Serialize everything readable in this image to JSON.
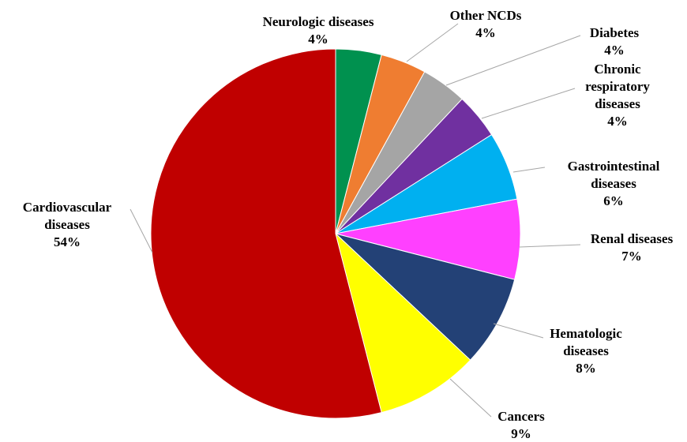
{
  "chart_data": {
    "type": "pie",
    "categories": [
      "Neurologic diseases",
      "Other NCDs",
      "Diabetes",
      "Chronic respiratory diseases",
      "Gastrointestinal diseases",
      "Renal diseases",
      "Hematologic diseases",
      "Cancers",
      "Cardiovascular diseases"
    ],
    "values": [
      4,
      4,
      4,
      4,
      6,
      7,
      8,
      9,
      54
    ],
    "value_labels": [
      "4%",
      "4%",
      "4%",
      "4%",
      "6%",
      "7%",
      "8%",
      "9%",
      "54%"
    ],
    "colors": [
      "#00914f",
      "#ef7d31",
      "#a5a5a5",
      "#7030a0",
      "#00b0f0",
      "#ff40ff",
      "#234176",
      "#ffff00",
      "#c00000"
    ]
  }
}
